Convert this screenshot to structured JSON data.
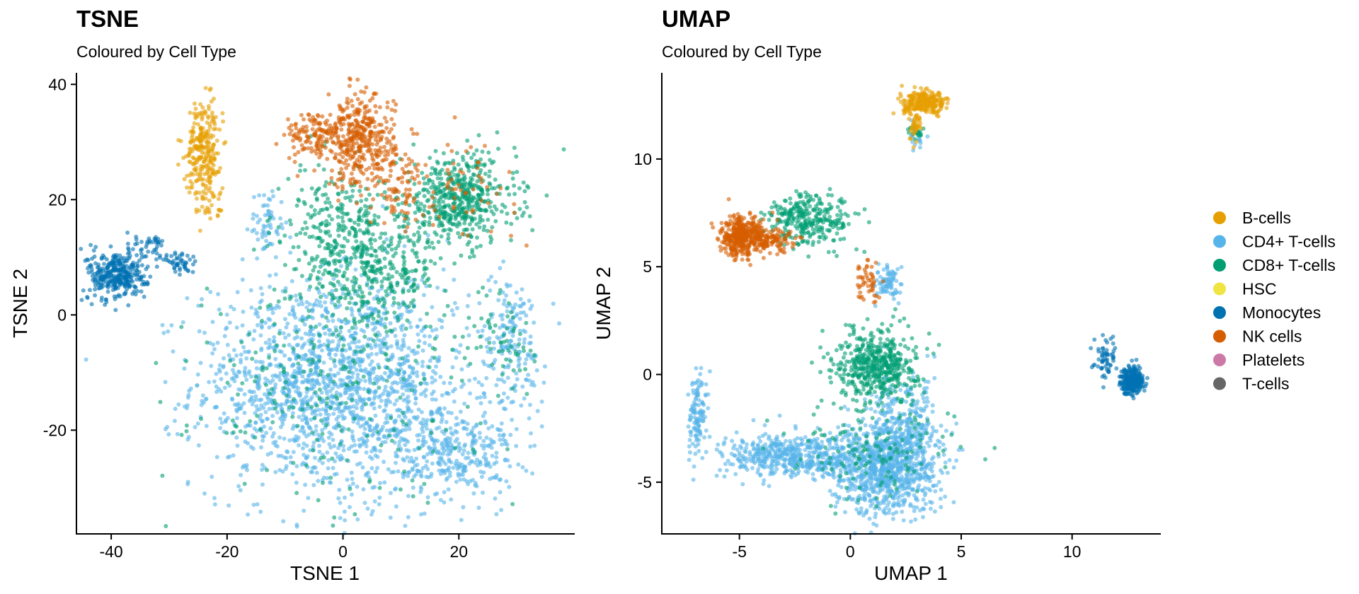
{
  "legend": {
    "items": [
      {
        "label": "B-cells",
        "color": "#E69F00"
      },
      {
        "label": "CD4+ T-cells",
        "color": "#56B4E9"
      },
      {
        "label": "CD8+ T-cells",
        "color": "#009E73"
      },
      {
        "label": "HSC",
        "color": "#F0E442"
      },
      {
        "label": "Monocytes",
        "color": "#0072B2"
      },
      {
        "label": "NK cells",
        "color": "#D55E00"
      },
      {
        "label": "Platelets",
        "color": "#CC79A7"
      },
      {
        "label": "T-cells",
        "color": "#666666"
      }
    ]
  },
  "chart_data": [
    {
      "type": "scatter",
      "title": "TSNE",
      "subtitle": "Coloured by Cell Type",
      "xlabel": "TSNE 1",
      "ylabel": "TSNE 2",
      "xlim": [
        -46,
        40
      ],
      "ylim": [
        -38,
        42
      ],
      "xticks": [
        -40,
        -20,
        0,
        20
      ],
      "yticks": [
        -20,
        0,
        20,
        40
      ],
      "xtick_labels": [
        "-40",
        "-20",
        "0",
        "20"
      ],
      "ytick_labels": [
        "-20",
        "0",
        "20",
        "40"
      ],
      "clusters": [
        {
          "group": "CD4+ T-cells",
          "cx": -8,
          "cy": -12,
          "sx": 9,
          "sy": 9,
          "n": 900
        },
        {
          "group": "CD4+ T-cells",
          "cx": 6,
          "cy": -12,
          "sx": 8,
          "sy": 10,
          "n": 800
        },
        {
          "group": "CD4+ T-cells",
          "cx": 20,
          "cy": -24,
          "sx": 5,
          "sy": 4,
          "n": 300
        },
        {
          "group": "CD4+ T-cells",
          "cx": 29,
          "cy": -5,
          "sx": 3,
          "sy": 6,
          "n": 180
        },
        {
          "group": "CD4+ T-cells",
          "cx": -13,
          "cy": 16,
          "sx": 1.5,
          "sy": 3,
          "n": 60
        },
        {
          "group": "CD8+ T-cells",
          "cx": 20,
          "cy": 20,
          "sx": 5,
          "sy": 4,
          "n": 500
        },
        {
          "group": "CD8+ T-cells",
          "cx": 5,
          "cy": 8,
          "sx": 6,
          "sy": 5,
          "n": 400
        },
        {
          "group": "CD8+ T-cells",
          "cx": -2,
          "cy": 16,
          "sx": 4,
          "sy": 5,
          "n": 180
        },
        {
          "group": "CD8+ T-cells",
          "cx": -2,
          "cy": -12,
          "sx": 12,
          "sy": 10,
          "n": 250
        },
        {
          "group": "CD8+ T-cells",
          "cx": 28,
          "cy": -5,
          "sx": 3,
          "sy": 5,
          "n": 60
        },
        {
          "group": "NK cells",
          "cx": 3,
          "cy": 30,
          "sx": 3,
          "sy": 4,
          "n": 400
        },
        {
          "group": "NK cells",
          "cx": -5,
          "cy": 31,
          "sx": 2.5,
          "sy": 2,
          "n": 120
        },
        {
          "group": "NK cells",
          "cx": 10,
          "cy": 22,
          "sx": 2,
          "sy": 3,
          "n": 70
        },
        {
          "group": "NK cells",
          "cx": 20,
          "cy": 22,
          "sx": 5,
          "sy": 4,
          "n": 60
        },
        {
          "group": "B-cells",
          "cx": -24,
          "cy": 29,
          "sx": 1.5,
          "sy": 4,
          "n": 250
        },
        {
          "group": "B-cells",
          "cx": -24,
          "cy": 20,
          "sx": 1.5,
          "sy": 2,
          "n": 30
        },
        {
          "group": "Monocytes",
          "cx": -39,
          "cy": 7,
          "sx": 2.5,
          "sy": 2.2,
          "n": 350
        },
        {
          "group": "Monocytes",
          "cx": -28,
          "cy": 9,
          "sx": 1.5,
          "sy": 1.2,
          "n": 50
        },
        {
          "group": "Monocytes",
          "cx": -33,
          "cy": 12,
          "sx": 1.5,
          "sy": 1,
          "n": 30
        }
      ]
    },
    {
      "type": "scatter",
      "title": "UMAP",
      "subtitle": "Coloured by Cell Type",
      "xlabel": "UMAP 1",
      "ylabel": "UMAP 2",
      "xlim": [
        -8.5,
        14
      ],
      "ylim": [
        -7.4,
        14
      ],
      "xticks": [
        -5,
        0,
        5,
        10
      ],
      "yticks": [
        -5,
        0,
        5,
        10
      ],
      "xtick_labels": [
        "-5",
        "0",
        "5",
        "10"
      ],
      "ytick_labels": [
        "-5",
        "0",
        "5",
        "10"
      ],
      "clusters": [
        {
          "group": "CD4+ T-cells",
          "cx": 1.5,
          "cy": -4.3,
          "sx": 1.2,
          "sy": 1.1,
          "n": 900
        },
        {
          "group": "CD4+ T-cells",
          "cx": -2.5,
          "cy": -3.8,
          "sx": 1.6,
          "sy": 0.5,
          "n": 500
        },
        {
          "group": "CD4+ T-cells",
          "cx": 2.5,
          "cy": -2.5,
          "sx": 0.8,
          "sy": 1.2,
          "n": 250
        },
        {
          "group": "CD4+ T-cells",
          "cx": -6.9,
          "cy": -1.8,
          "sx": 0.2,
          "sy": 1.0,
          "n": 120
        },
        {
          "group": "CD4+ T-cells",
          "cx": 1.7,
          "cy": 4.2,
          "sx": 0.3,
          "sy": 0.4,
          "n": 80
        },
        {
          "group": "CD4+ T-cells",
          "cx": 3.0,
          "cy": 11.0,
          "sx": 0.15,
          "sy": 0.4,
          "n": 20
        },
        {
          "group": "CD8+ T-cells",
          "cx": 1.2,
          "cy": 0.5,
          "sx": 0.9,
          "sy": 0.8,
          "n": 500
        },
        {
          "group": "CD8+ T-cells",
          "cx": -1.8,
          "cy": 7.2,
          "sx": 1.0,
          "sy": 0.6,
          "n": 300
        },
        {
          "group": "CD8+ T-cells",
          "cx": 1.0,
          "cy": -3.5,
          "sx": 1.8,
          "sy": 1.2,
          "n": 150
        },
        {
          "group": "CD8+ T-cells",
          "cx": 3.0,
          "cy": 11.2,
          "sx": 0.2,
          "sy": 0.3,
          "n": 20
        },
        {
          "group": "NK cells",
          "cx": -4.9,
          "cy": 6.4,
          "sx": 0.5,
          "sy": 0.45,
          "n": 400
        },
        {
          "group": "NK cells",
          "cx": -3.5,
          "cy": 6.2,
          "sx": 0.6,
          "sy": 0.25,
          "n": 100
        },
        {
          "group": "NK cells",
          "cx": 0.8,
          "cy": 4.3,
          "sx": 0.3,
          "sy": 0.5,
          "n": 50
        },
        {
          "group": "B-cells",
          "cx": 3.4,
          "cy": 12.6,
          "sx": 0.5,
          "sy": 0.25,
          "n": 250
        },
        {
          "group": "B-cells",
          "cx": 2.9,
          "cy": 11.6,
          "sx": 0.15,
          "sy": 0.35,
          "n": 40
        },
        {
          "group": "Monocytes",
          "cx": 12.7,
          "cy": -0.3,
          "sx": 0.25,
          "sy": 0.3,
          "n": 300
        },
        {
          "group": "Monocytes",
          "cx": 11.5,
          "cy": 0.8,
          "sx": 0.3,
          "sy": 0.5,
          "n": 60
        }
      ]
    }
  ]
}
